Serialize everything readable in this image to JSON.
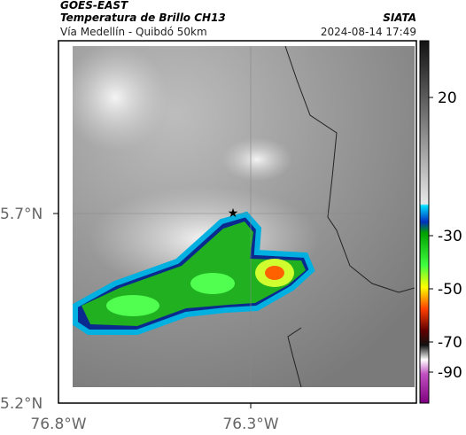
{
  "header": {
    "satellite": "GOES-EAST",
    "product": "Temperatura de Brillo CH13",
    "source": "SIATA",
    "region": "Vía Medellín - Quibdó 50km",
    "timestamp": "2024-08-14 17:49"
  },
  "axes": {
    "latitude_labels": [
      "5.7°N",
      "5.2°N"
    ],
    "longitude_labels": [
      "76.8°W",
      "76.3°W"
    ]
  },
  "colorbar": {
    "ticks": [
      20,
      -30,
      -50,
      -70,
      -90
    ]
  }
}
